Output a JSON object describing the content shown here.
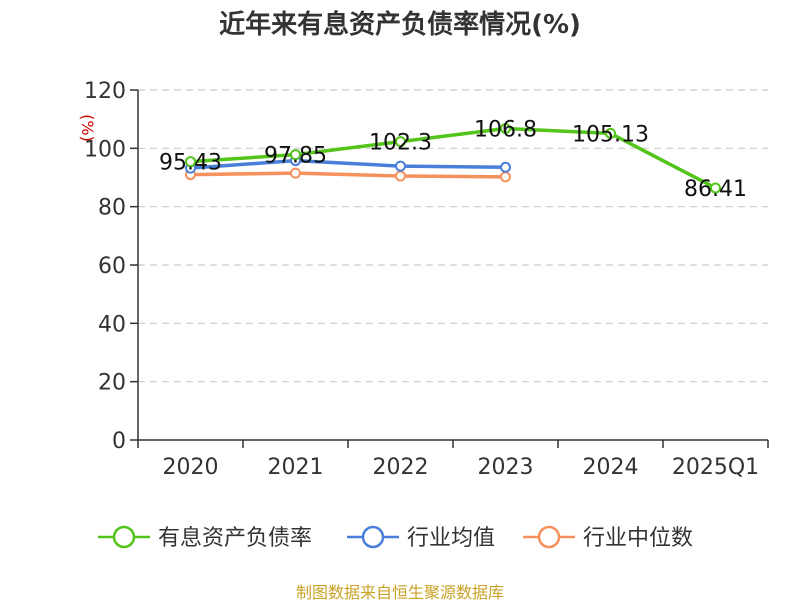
{
  "chart_data": {
    "type": "line",
    "title": "近年来有息资产负债率情况(%)",
    "ylabel": "(%)",
    "xlabel": "",
    "categories": [
      "2020",
      "2021",
      "2022",
      "2023",
      "2024",
      "2025Q1"
    ],
    "ylim": [
      0,
      120
    ],
    "yticks": [
      0,
      20,
      40,
      60,
      80,
      100,
      120
    ],
    "grid": true,
    "legend_position": "bottom",
    "series": [
      {
        "name": "有息资产负债率",
        "color": "#52c41a",
        "values": [
          95.43,
          97.85,
          102.3,
          106.8,
          105.13,
          86.41
        ],
        "labels": [
          "95.43",
          "97.85",
          "102.3",
          "106.8",
          "105.13",
          "86.41"
        ]
      },
      {
        "name": "行业均值",
        "color": "#4a7fd9",
        "values": [
          93.2,
          95.8,
          93.9,
          93.5,
          null,
          null
        ]
      },
      {
        "name": "行业中位数",
        "color": "#f4915d",
        "values": [
          91.0,
          91.5,
          90.5,
          90.2,
          null,
          null
        ]
      }
    ]
  },
  "footer": {
    "source": "制图数据来自恒生聚源数据库"
  }
}
